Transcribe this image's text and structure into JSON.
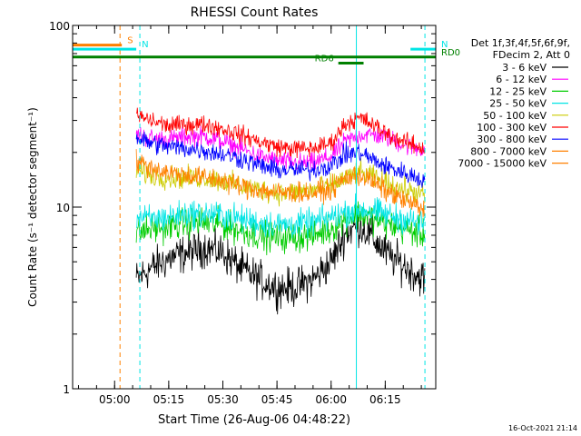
{
  "chart_data": {
    "type": "line",
    "title": "RHESSI Count Rates",
    "xlabel": "Start Time (26-Aug-06 04:48:22)",
    "ylabel": "Count Rate (s⁻¹ detector segment⁻¹)",
    "yscale": "log",
    "ylim": [
      1,
      100
    ],
    "xlim": [
      "04:48:22",
      "06:29:00"
    ],
    "ytick_labels": [
      "1",
      "10",
      "100"
    ],
    "xtick_labels": [
      "05:00",
      "05:15",
      "05:30",
      "05:45",
      "06:00",
      "06:15"
    ],
    "legend": {
      "placement": "right",
      "header": [
        "Det 1f,3f,4f,5f,6f,9f,",
        "FDecim 2, Att 0"
      ]
    },
    "series": [
      {
        "name": "3 - 6 keV",
        "color": "#000000",
        "x": [
          "05:06",
          "05:10",
          "05:15",
          "05:20",
          "05:25",
          "05:30",
          "05:35",
          "05:40",
          "05:45",
          "05:50",
          "05:55",
          "06:00",
          "06:04",
          "06:08",
          "06:12",
          "06:16",
          "06:20",
          "06:24",
          "06:26"
        ],
        "values": [
          4.0,
          4.6,
          5.2,
          5.6,
          6.0,
          5.6,
          4.6,
          4.0,
          3.6,
          3.6,
          4.0,
          5.0,
          7.2,
          8.0,
          6.6,
          5.4,
          4.8,
          4.2,
          4.0
        ]
      },
      {
        "name": "6 - 12 keV",
        "color": "#ff00ff",
        "x": [
          "05:06",
          "05:10",
          "05:15",
          "05:20",
          "05:25",
          "05:30",
          "05:35",
          "05:40",
          "05:45",
          "05:50",
          "05:55",
          "06:00",
          "06:04",
          "06:08",
          "06:12",
          "06:16",
          "06:20",
          "06:24",
          "06:26"
        ],
        "values": [
          25,
          24,
          23.5,
          24.5,
          24.5,
          23,
          21,
          19,
          18,
          17.5,
          17.5,
          19,
          23,
          25,
          25,
          24,
          22,
          21,
          21
        ]
      },
      {
        "name": "12 - 25 keV",
        "color": "#00cc00",
        "x": [
          "05:06",
          "05:10",
          "05:15",
          "05:20",
          "05:25",
          "05:30",
          "05:35",
          "05:40",
          "05:45",
          "05:50",
          "05:55",
          "06:00",
          "06:04",
          "06:08",
          "06:12",
          "06:16",
          "06:20",
          "06:24",
          "06:26"
        ],
        "values": [
          7.2,
          7.6,
          7.8,
          8.2,
          8.2,
          8.0,
          7.4,
          7.0,
          6.8,
          6.8,
          7.0,
          7.6,
          8.6,
          9.2,
          8.6,
          8.0,
          7.6,
          7.2,
          7.0
        ]
      },
      {
        "name": "25 - 50 keV",
        "color": "#00e5e5",
        "x": [
          "05:06",
          "05:10",
          "05:15",
          "05:20",
          "05:25",
          "05:30",
          "05:35",
          "05:40",
          "05:45",
          "05:50",
          "05:55",
          "06:00",
          "06:04",
          "06:08",
          "06:12",
          "06:16",
          "06:20",
          "06:24",
          "06:26"
        ],
        "values": [
          8.8,
          8.6,
          8.8,
          9.2,
          9.2,
          9.0,
          8.6,
          8.2,
          8.0,
          8.0,
          8.2,
          8.8,
          9.4,
          9.8,
          9.4,
          9.0,
          8.6,
          8.2,
          8.0
        ]
      },
      {
        "name": "50 - 100 keV",
        "color": "#cccc00",
        "x": [
          "05:06",
          "05:10",
          "05:15",
          "05:20",
          "05:25",
          "05:30",
          "05:35",
          "05:40",
          "05:45",
          "05:50",
          "05:55",
          "06:00",
          "06:04",
          "06:08",
          "06:12",
          "06:16",
          "06:20",
          "06:24",
          "06:26"
        ],
        "values": [
          16,
          15,
          14.5,
          14.5,
          14.5,
          14,
          13,
          12.5,
          12,
          12,
          12.5,
          13,
          14.5,
          15.5,
          14.5,
          13.5,
          12.5,
          12,
          11.5
        ]
      },
      {
        "name": "100 - 300 keV",
        "color": "#ff0000",
        "x": [
          "05:06",
          "05:10",
          "05:15",
          "05:20",
          "05:25",
          "05:30",
          "05:35",
          "05:40",
          "05:45",
          "05:50",
          "05:55",
          "06:00",
          "06:04",
          "06:08",
          "06:12",
          "06:16",
          "06:20",
          "06:24",
          "06:26"
        ],
        "values": [
          32,
          30,
          28,
          28.5,
          28.5,
          27,
          25,
          23,
          21.5,
          21,
          21,
          22.5,
          29,
          31,
          28,
          25,
          23,
          21.5,
          21
        ]
      },
      {
        "name": "300 - 800 keV",
        "color": "#0000ff",
        "x": [
          "05:06",
          "05:10",
          "05:15",
          "05:20",
          "05:25",
          "05:30",
          "05:35",
          "05:40",
          "05:45",
          "05:50",
          "05:55",
          "06:00",
          "06:04",
          "06:08",
          "06:12",
          "06:16",
          "06:20",
          "06:24",
          "06:26"
        ],
        "values": [
          24,
          22.5,
          21.5,
          21,
          20.5,
          19.5,
          18.5,
          17,
          16,
          16,
          16,
          17,
          19.5,
          20,
          18,
          16.5,
          15.5,
          14.5,
          14
        ]
      },
      {
        "name": "800 - 7000 keV",
        "color": "#ff8000",
        "x": [
          "05:06",
          "05:10",
          "05:15",
          "05:20",
          "05:25",
          "05:30",
          "05:35",
          "05:40",
          "05:45",
          "05:50",
          "05:55",
          "06:00",
          "06:04",
          "06:08",
          "06:12",
          "06:16",
          "06:20",
          "06:24",
          "06:26"
        ],
        "values": [
          18,
          16.5,
          15.5,
          15,
          14.5,
          14,
          13,
          12.5,
          12,
          12,
          12,
          12.5,
          14.5,
          15,
          13.5,
          12,
          11,
          10,
          9.5
        ]
      },
      {
        "name": "7000 - 15000 keV",
        "color": "#ff8000",
        "values": []
      }
    ],
    "annotations": {
      "bars": [
        {
          "label": "S",
          "color": "#ff8000",
          "x_range": [
            "04:48:22",
            "05:02:00"
          ],
          "level": 78
        },
        {
          "label": "N",
          "color": "#00e5e5",
          "x_range": [
            "04:48:22",
            "05:06:00"
          ],
          "level": 74
        },
        {
          "label": "N",
          "color": "#00e5e5",
          "x_range": [
            "06:22:00",
            "06:29:00"
          ],
          "level": 74
        },
        {
          "label": "RD0",
          "color": "#008000",
          "x_range": [
            "04:48:22",
            "06:29:00"
          ],
          "level": 67
        },
        {
          "label": "RD6",
          "color": "#008000",
          "x_range": [
            "06:02:00",
            "06:09:00"
          ],
          "level": 62
        }
      ],
      "vlines": [
        {
          "x": "04:48:22",
          "color": "#00e5e5",
          "style": "solid"
        },
        {
          "x": "05:01:30",
          "color": "#ff8000",
          "style": "dashed"
        },
        {
          "x": "05:07:00",
          "color": "#00e5e5",
          "style": "dashed"
        },
        {
          "x": "06:07:00",
          "color": "#00e5e5",
          "style": "solid"
        },
        {
          "x": "06:26:00",
          "color": "#00e5e5",
          "style": "dashed"
        }
      ]
    },
    "footer": "16-Oct-2021 21:14"
  }
}
